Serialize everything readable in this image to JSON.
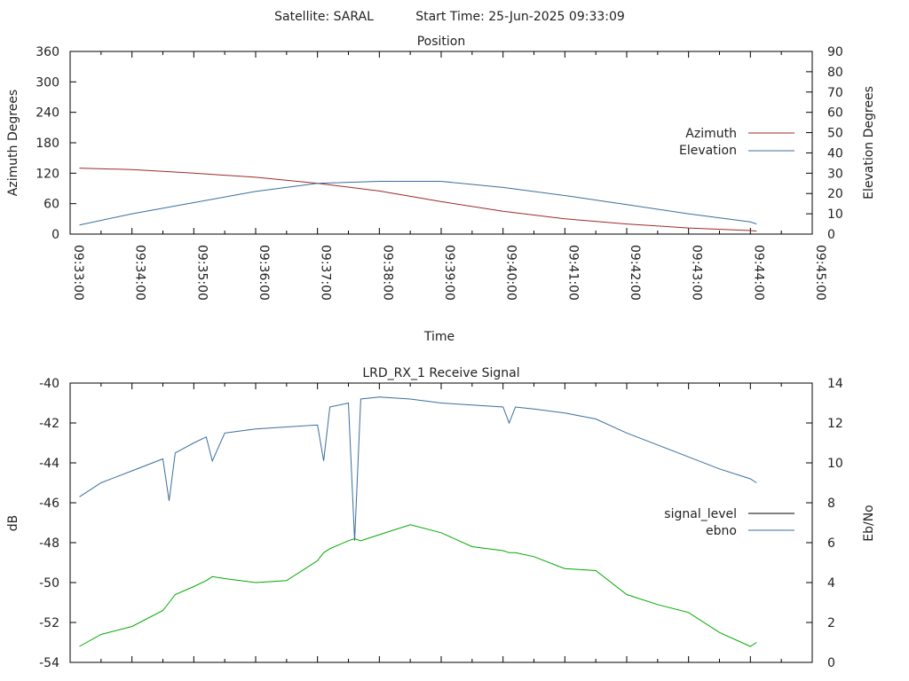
{
  "header": {
    "satellite": "Satellite: SARAL",
    "start_time": "Start Time: 25-Jun-2025 09:33:09"
  },
  "colors": {
    "azimuth": "#a02828",
    "elevation": "#3a6e9e",
    "signal_level": "#000000",
    "ebno": "#3a6e9e",
    "ebno_trace_green": "#00aa00"
  },
  "chart_data": [
    {
      "type": "line",
      "title": "Position",
      "xlabel": "Time",
      "ylabel": "Azimuth Degrees",
      "y2label": "Elevation Degrees",
      "xlim": [
        "09:33:00",
        "09:45:00"
      ],
      "ylim": [
        0,
        360
      ],
      "y2lim": [
        0,
        90
      ],
      "xticks": [
        "09:33:00",
        "09:34:00",
        "09:35:00",
        "09:36:00",
        "09:37:00",
        "09:38:00",
        "09:39:00",
        "09:40:00",
        "09:41:00",
        "09:42:00",
        "09:43:00",
        "09:44:00",
        "09:45:00"
      ],
      "yticks": [
        0,
        60,
        120,
        180,
        240,
        300,
        360
      ],
      "y2ticks": [
        0,
        10,
        20,
        30,
        40,
        50,
        60,
        70,
        80,
        90
      ],
      "legend": "right-middle",
      "x_minutes": [
        0.15,
        1,
        2,
        3,
        4,
        5,
        6,
        7,
        8,
        9,
        10,
        11,
        11.1
      ],
      "series": [
        {
          "name": "Azimuth",
          "axis": "left",
          "values": [
            130,
            127,
            120,
            112,
            100,
            85,
            64,
            45,
            30,
            20,
            12,
            7,
            6
          ]
        },
        {
          "name": "Elevation",
          "axis": "right",
          "values": [
            4.5,
            10,
            15.5,
            21,
            25,
            26,
            26,
            23,
            19,
            14.5,
            10,
            6,
            5
          ]
        }
      ]
    },
    {
      "type": "line",
      "title": "LRD_RX_1 Receive Signal",
      "ylabel": "dB",
      "y2label": "Eb/No",
      "ylim": [
        -54,
        -40
      ],
      "y2lim": [
        0,
        14
      ],
      "yticks": [
        -54,
        -52,
        -50,
        -48,
        -46,
        -44,
        -42,
        -40
      ],
      "y2ticks": [
        0,
        2,
        4,
        6,
        8,
        10,
        12,
        14
      ],
      "legend": "right-middle",
      "x_minutes": [
        0.15,
        0.5,
        1,
        1.5,
        1.6,
        1.7,
        2,
        2.2,
        2.3,
        2.5,
        3,
        3.5,
        4,
        4.1,
        4.2,
        4.5,
        4.6,
        4.7,
        5,
        5.5,
        6,
        6.5,
        7,
        7.1,
        7.2,
        7.5,
        8,
        8.5,
        9,
        9.5,
        10,
        10.5,
        11,
        11.1
      ],
      "series": [
        {
          "name": "signal_level",
          "axis": "left",
          "values": []
        },
        {
          "name": "ebno",
          "axis": "right",
          "values": [
            8.3,
            9.0,
            9.6,
            10.2,
            8.1,
            10.5,
            11.0,
            11.3,
            10.1,
            11.5,
            11.7,
            11.8,
            11.9,
            10.1,
            12.8,
            13.0,
            6.1,
            13.2,
            13.3,
            13.2,
            13.0,
            12.9,
            12.8,
            12.0,
            12.8,
            12.7,
            12.5,
            12.2,
            11.5,
            10.9,
            10.3,
            9.7,
            9.2,
            9.0
          ]
        },
        {
          "name": "",
          "axis": "right",
          "legend": false,
          "values": [
            0.8,
            1.4,
            1.8,
            2.6,
            3.0,
            3.4,
            3.8,
            4.1,
            4.3,
            4.2,
            4.0,
            4.1,
            5.1,
            5.5,
            5.7,
            6.1,
            6.2,
            6.1,
            6.4,
            6.9,
            6.5,
            5.8,
            5.6,
            5.5,
            5.5,
            5.3,
            4.7,
            4.6,
            3.4,
            2.9,
            2.5,
            1.5,
            0.8,
            1.0
          ]
        }
      ]
    }
  ]
}
